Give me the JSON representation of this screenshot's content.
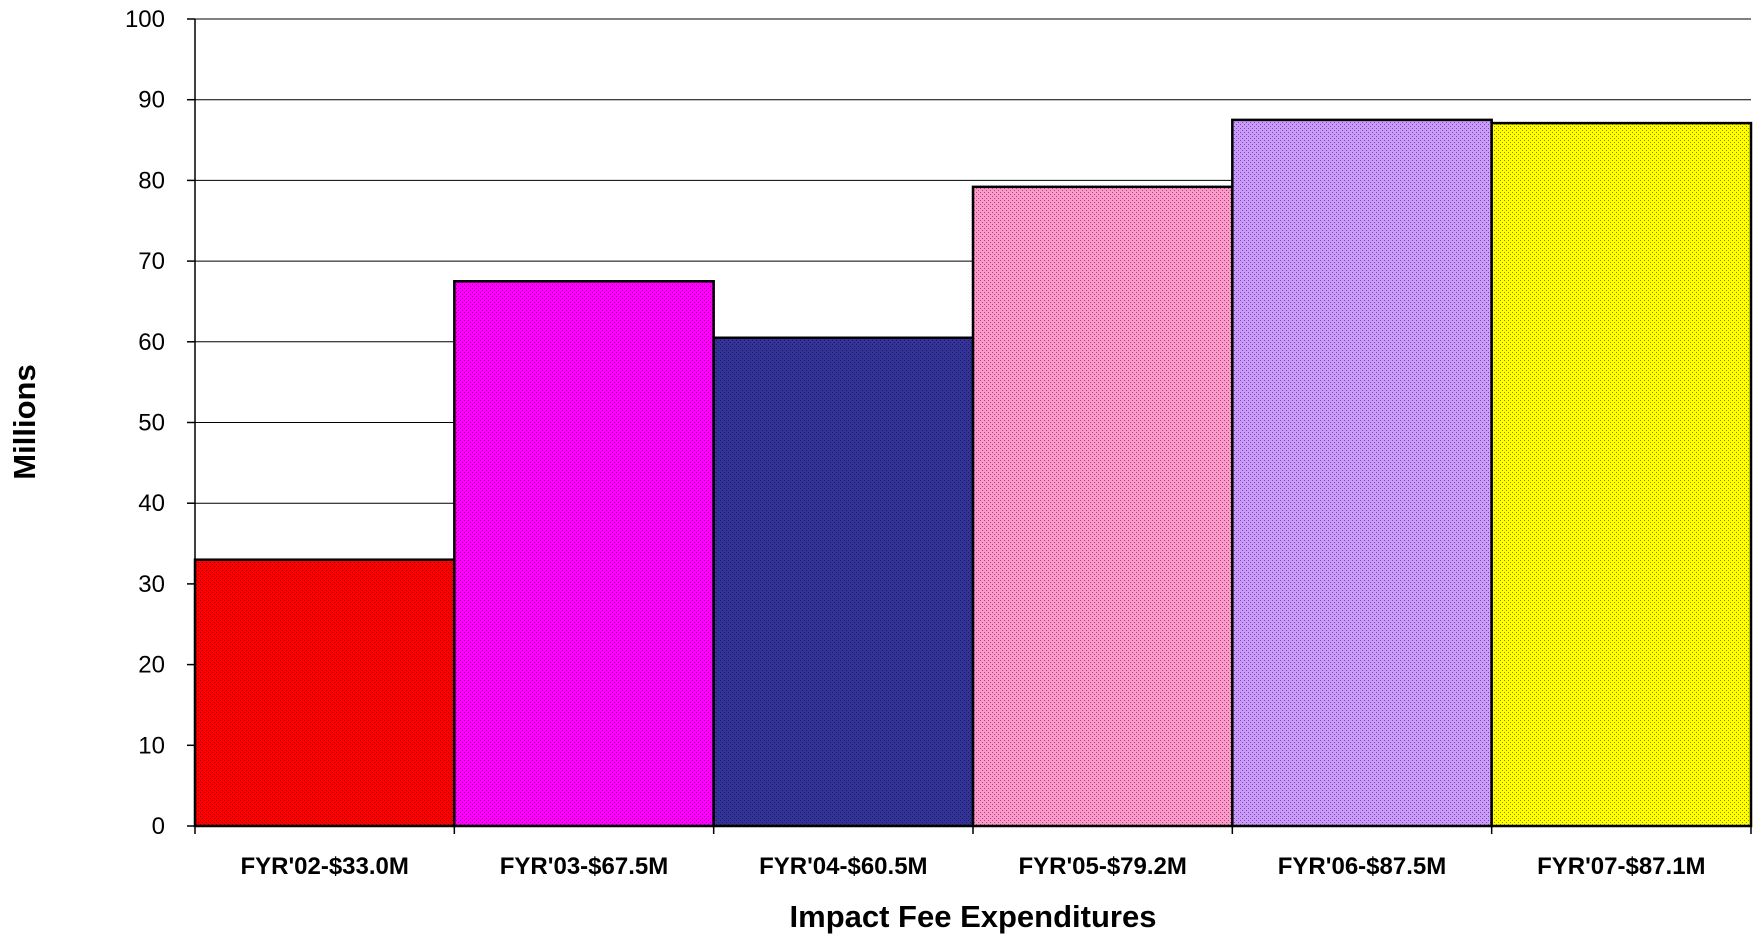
{
  "chart_data": {
    "type": "bar",
    "title": "",
    "xlabel": "Impact Fee Expenditures",
    "ylabel": "Millions",
    "categories": [
      "FYR'02-$33.0M",
      "FYR'03-$67.5M",
      "FYR'04-$60.5M",
      "FYR'05-$79.2M",
      "FYR'06-$87.5M",
      "FYR'07-$87.1M"
    ],
    "values": [
      33.0,
      67.5,
      60.5,
      79.2,
      87.5,
      87.1
    ],
    "colors": [
      "#ff0000",
      "#ff00ff",
      "#333399",
      "#ff99cc",
      "#cc99ff",
      "#ffff00"
    ],
    "ylim": [
      0,
      100
    ],
    "yticks": [
      "0",
      "10",
      "20",
      "30",
      "40",
      "50",
      "60",
      "70",
      "80",
      "90",
      "100"
    ],
    "grid": true,
    "legend": "none"
  }
}
